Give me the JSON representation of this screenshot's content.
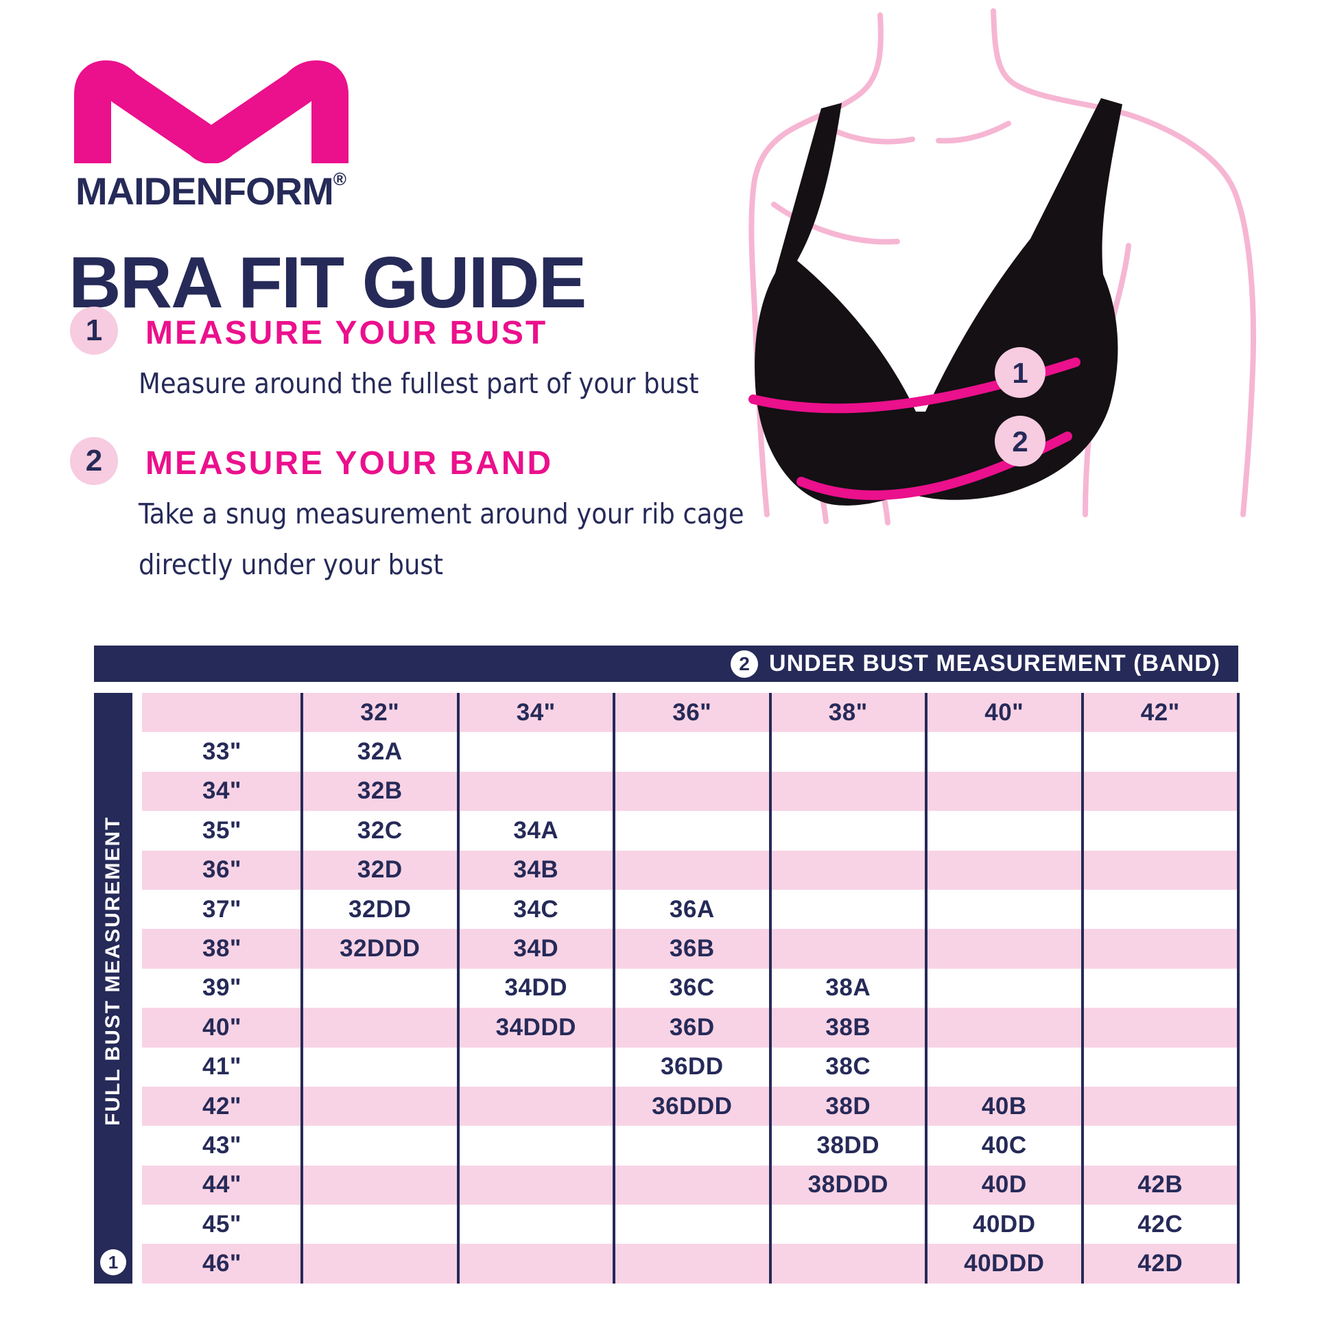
{
  "brand": {
    "name": "MAIDENFORM",
    "reg": "®",
    "title": "BRA FIT GUIDE"
  },
  "steps": [
    {
      "num": "1",
      "heading": "MEASURE YOUR BUST",
      "body_lines": [
        "Measure around the fullest part of your bust"
      ]
    },
    {
      "num": "2",
      "heading": "MEASURE YOUR BAND",
      "body_lines": [
        "Take a snug measurement around your rib cage",
        "directly under your bust"
      ]
    }
  ],
  "diagram": {
    "bust_marker": "1",
    "band_marker": "2"
  },
  "table": {
    "band_header": {
      "num": "2",
      "label": "UNDER BUST MEASUREMENT (BAND)"
    },
    "bust_header": {
      "num": "1",
      "label": "FULL BUST MEASUREMENT"
    },
    "band_sizes": [
      "32\"",
      "34\"",
      "36\"",
      "38\"",
      "40\"",
      "42\""
    ],
    "rows": [
      {
        "bust": "33\"",
        "sizes": [
          "32A",
          "",
          "",
          "",
          "",
          ""
        ]
      },
      {
        "bust": "34\"",
        "sizes": [
          "32B",
          "",
          "",
          "",
          "",
          ""
        ]
      },
      {
        "bust": "35\"",
        "sizes": [
          "32C",
          "34A",
          "",
          "",
          "",
          ""
        ]
      },
      {
        "bust": "36\"",
        "sizes": [
          "32D",
          "34B",
          "",
          "",
          "",
          ""
        ]
      },
      {
        "bust": "37\"",
        "sizes": [
          "32DD",
          "34C",
          "36A",
          "",
          "",
          ""
        ]
      },
      {
        "bust": "38\"",
        "sizes": [
          "32DDD",
          "34D",
          "36B",
          "",
          "",
          ""
        ]
      },
      {
        "bust": "39\"",
        "sizes": [
          "",
          "34DD",
          "36C",
          "38A",
          "",
          ""
        ]
      },
      {
        "bust": "40\"",
        "sizes": [
          "",
          "34DDD",
          "36D",
          "38B",
          "",
          ""
        ]
      },
      {
        "bust": "41\"",
        "sizes": [
          "",
          "",
          "36DD",
          "38C",
          "",
          ""
        ]
      },
      {
        "bust": "42\"",
        "sizes": [
          "",
          "",
          "36DDD",
          "38D",
          "40B",
          ""
        ]
      },
      {
        "bust": "43\"",
        "sizes": [
          "",
          "",
          "",
          "38DD",
          "40C",
          ""
        ]
      },
      {
        "bust": "44\"",
        "sizes": [
          "",
          "",
          "",
          "38DDD",
          "40D",
          "42B"
        ]
      },
      {
        "bust": "45\"",
        "sizes": [
          "",
          "",
          "",
          "",
          "40DD",
          "42C"
        ]
      },
      {
        "bust": "46\"",
        "sizes": [
          "",
          "",
          "",
          "",
          "40DDD",
          "42D"
        ]
      }
    ]
  },
  "colors": {
    "magenta": "#eb108c",
    "navy": "#262a58",
    "row_pink": "#f8d3e5",
    "circle_pink": "#f7cbe0",
    "torso_pink": "#f6b6d3",
    "bra_black": "#141014"
  }
}
